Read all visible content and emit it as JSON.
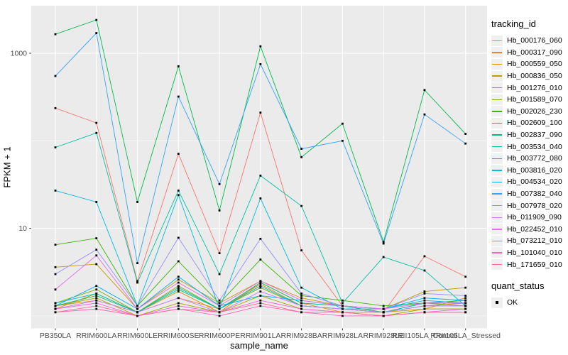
{
  "figure": {
    "background": "#ffffff",
    "panel_background": "#ebebeb",
    "grid_color": "#ffffff",
    "axis_text_color": "#4d4d4d",
    "tick_mark_color": "#333333",
    "point_color": "#000000"
  },
  "chart_data": {
    "type": "line",
    "x_type": "categorical",
    "title": "",
    "xlabel": "sample_name",
    "ylabel": "FPKM + 1",
    "y_scale": "log10",
    "y_ticks": [
      10,
      1000
    ],
    "y_minor_ticks": [
      1,
      100
    ],
    "ylim": [
      1,
      3300
    ],
    "grid": true,
    "legend_position": "right",
    "categories": [
      "PB350LA",
      "RRIM600LA",
      "RRIM600LE",
      "RRIM600SE",
      "RRIM600PE",
      "RRIM901LA",
      "RRIM928BA",
      "RRIM928LA",
      "RRIM928LE",
      "RRII105LA_Control",
      "RRII105LA_Stressed"
    ],
    "series": [
      {
        "name": "Hb_000176_060",
        "color": "#F8766D",
        "values": [
          236,
          160,
          2.5,
          71,
          5.2,
          210,
          5.6,
          1.3,
          1.1,
          4.8,
          2.8
        ]
      },
      {
        "name": "Hb_000317_090",
        "color": "#EA8331",
        "values": [
          1.3,
          1.5,
          1.1,
          1.6,
          1.2,
          2.3,
          1.3,
          1.2,
          1.1,
          1.3,
          1.4
        ]
      },
      {
        "name": "Hb_000559_050",
        "color": "#D89000",
        "values": [
          1.2,
          1.8,
          1.1,
          1.9,
          1.1,
          2.4,
          1.4,
          1.1,
          1.1,
          1.2,
          1.6
        ]
      },
      {
        "name": "Hb_000836_050",
        "color": "#C09B00",
        "values": [
          3.6,
          3.9,
          1.2,
          2.6,
          1.4,
          2.5,
          1.6,
          1.3,
          1.2,
          1.9,
          2.1
        ]
      },
      {
        "name": "Hb_001276_010",
        "color": "#A3A500",
        "values": [
          1.3,
          1.6,
          1.0,
          1.4,
          1.1,
          1.7,
          1.2,
          1.1,
          1.0,
          1.2,
          1.2
        ]
      },
      {
        "name": "Hb_001589_070",
        "color": "#7CAE00",
        "values": [
          1.4,
          2.0,
          1.1,
          2.2,
          1.2,
          2.1,
          1.3,
          1.2,
          1.1,
          1.4,
          1.3
        ]
      },
      {
        "name": "Hb_002026_230",
        "color": "#39B600",
        "values": [
          6.5,
          7.7,
          1.3,
          4.2,
          1.4,
          4.4,
          1.7,
          1.5,
          1.3,
          1.4,
          1.5
        ]
      },
      {
        "name": "Hb_002609_100",
        "color": "#00BB4E",
        "values": [
          1650,
          2400,
          20,
          710,
          16,
          1200,
          65,
          157,
          7.0,
          380,
          120
        ]
      },
      {
        "name": "Hb_002837_090",
        "color": "#00BF7D",
        "values": [
          1.3,
          1.7,
          1.1,
          2.0,
          1.2,
          2.4,
          1.4,
          1.3,
          1.1,
          1.3,
          1.3
        ]
      },
      {
        "name": "Hb_003534_040",
        "color": "#00C1A3",
        "values": [
          84,
          123,
          2.4,
          27,
          3.0,
          40,
          18,
          1.4,
          4.7,
          3.3,
          1.3
        ]
      },
      {
        "name": "Hb_003772_080",
        "color": "#00BFC4",
        "values": [
          1.4,
          1.8,
          1.1,
          2.1,
          1.2,
          2.2,
          1.3,
          1.2,
          1.1,
          1.4,
          1.4
        ]
      },
      {
        "name": "Hb_003816_020",
        "color": "#00BAE0",
        "values": [
          27,
          20,
          1.3,
          24,
          1.2,
          22,
          2.1,
          1.2,
          1.2,
          1.5,
          1.4
        ]
      },
      {
        "name": "Hb_004534_020",
        "color": "#00B0F6",
        "values": [
          1.3,
          2.2,
          1.2,
          2.8,
          1.3,
          1.7,
          1.5,
          1.3,
          1.2,
          1.6,
          1.5
        ]
      },
      {
        "name": "Hb_007382_040",
        "color": "#35A2FF",
        "values": [
          550,
          1700,
          4.0,
          320,
          32,
          750,
          81,
          100,
          6.7,
          200,
          93
        ]
      },
      {
        "name": "Hb_007978_020",
        "color": "#9590FF",
        "values": [
          3.0,
          5.7,
          1.3,
          7.8,
          1.5,
          7.6,
          1.8,
          1.3,
          1.2,
          1.8,
          1.7
        ]
      },
      {
        "name": "Hb_011909_090",
        "color": "#C77CFF",
        "values": [
          1.2,
          1.5,
          1.1,
          1.6,
          1.1,
          1.9,
          1.3,
          1.2,
          1.1,
          1.3,
          1.3
        ]
      },
      {
        "name": "Hb_022452_010",
        "color": "#E76BF3",
        "values": [
          2.0,
          4.9,
          1.2,
          2.4,
          1.3,
          2.5,
          1.5,
          1.3,
          1.2,
          1.4,
          1.4
        ]
      },
      {
        "name": "Hb_073212_010",
        "color": "#FA62DB",
        "values": [
          1.2,
          1.4,
          1.0,
          1.3,
          1.1,
          1.5,
          1.2,
          1.1,
          1.0,
          1.1,
          1.2
        ]
      },
      {
        "name": "Hb_101040_010",
        "color": "#FF62BC",
        "values": [
          1.1,
          1.2,
          1.0,
          1.2,
          1.0,
          1.3,
          1.1,
          1.0,
          1.0,
          1.1,
          1.1
        ]
      },
      {
        "name": "Hb_171659_010",
        "color": "#FF6A98",
        "values": [
          1.1,
          1.3,
          1.0,
          1.2,
          1.1,
          1.4,
          1.1,
          1.1,
          1.0,
          1.1,
          1.1
        ]
      }
    ],
    "legend": {
      "color_title": "tracking_id",
      "shape_title": "quant_status",
      "shape_items": [
        "OK"
      ]
    }
  }
}
